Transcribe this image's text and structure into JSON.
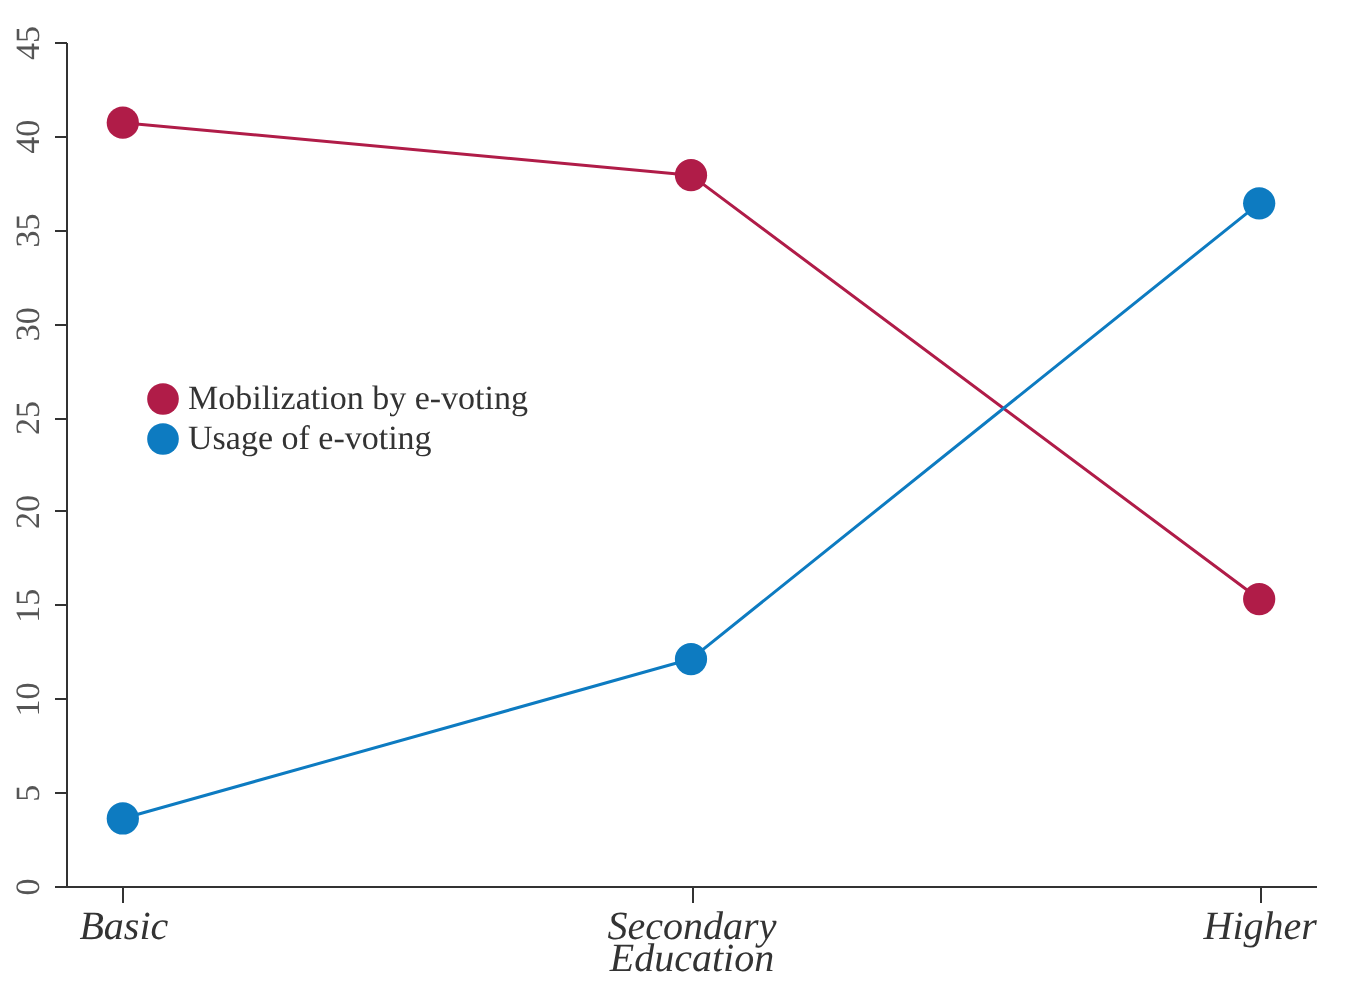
{
  "chart_data": {
    "type": "line",
    "xlabel": "Education",
    "categories": [
      "Basic",
      "Secondary",
      "Higher"
    ],
    "series": [
      {
        "name": "Mobilization by e-voting",
        "color": "#b01c48",
        "values": [
          40.7,
          37.9,
          15.3
        ]
      },
      {
        "name": "Usage of e-voting",
        "color": "#0d7bc1",
        "values": [
          3.6,
          12.1,
          36.4
        ]
      }
    ],
    "ylim": [
      0,
      45
    ],
    "yticks": [
      0,
      5,
      10,
      15,
      20,
      25,
      30,
      35,
      40,
      45
    ],
    "grid": false,
    "legend": "left",
    "marker": "circle"
  }
}
